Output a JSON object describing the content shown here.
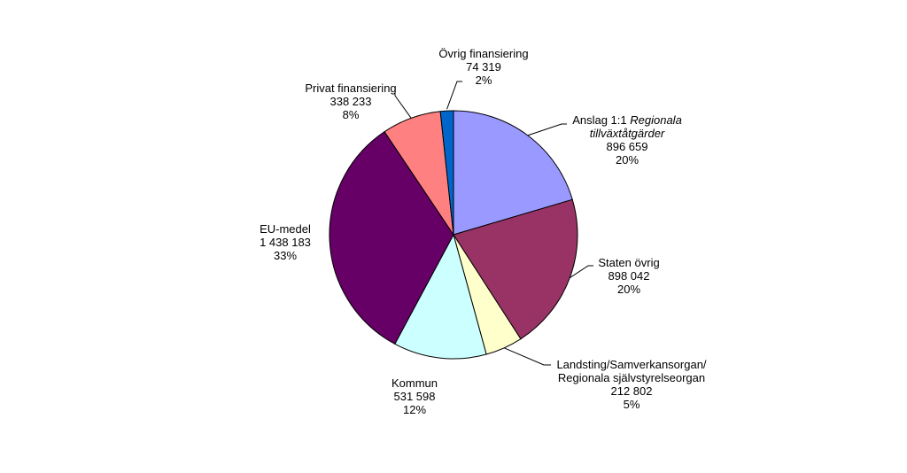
{
  "chart_data": {
    "type": "pie",
    "title": "",
    "slices": [
      {
        "id": "anslag",
        "name_lines": [
          {
            "text": "Anslag 1:1 ",
            "italic_suffix": "Regionala"
          },
          {
            "text": "",
            "italic_suffix": "tillväxtåtgärder"
          }
        ],
        "label_text": "Anslag 1:1",
        "label_italic_1": "Regionala",
        "label_italic_2": "tillväxtåtgärder",
        "value_text": "896 659",
        "value": 896659,
        "percent_text": "20%",
        "color": "#9999FF"
      },
      {
        "id": "staten-ovrig",
        "label_line1": "Staten övrig",
        "value_text": "898 042",
        "value": 898042,
        "percent_text": "20%",
        "color": "#993366"
      },
      {
        "id": "landsting",
        "label_line1": "Landsting/Samverkansorgan/",
        "label_line2": "Regionala självstyrelseorgan",
        "value_text": "212 802",
        "value": 212802,
        "percent_text": "5%",
        "color": "#FFFFCC"
      },
      {
        "id": "kommun",
        "label_line1": "Kommun",
        "value_text": "531 598",
        "value": 531598,
        "percent_text": "12%",
        "color": "#CCFFFF"
      },
      {
        "id": "eu-medel",
        "label_line1": "EU-medel",
        "value_text": "1 438 183",
        "value": 1438183,
        "percent_text": "33%",
        "color": "#660066"
      },
      {
        "id": "privat",
        "label_line1": "Privat finansiering",
        "value_text": "338 233",
        "value": 338233,
        "percent_text": "8%",
        "color": "#FF8080"
      },
      {
        "id": "ovrig",
        "label_line1": "Övrig finansiering",
        "value_text": "74 319",
        "value": 74319,
        "percent_text": "2%",
        "color": "#0066CC"
      }
    ]
  }
}
